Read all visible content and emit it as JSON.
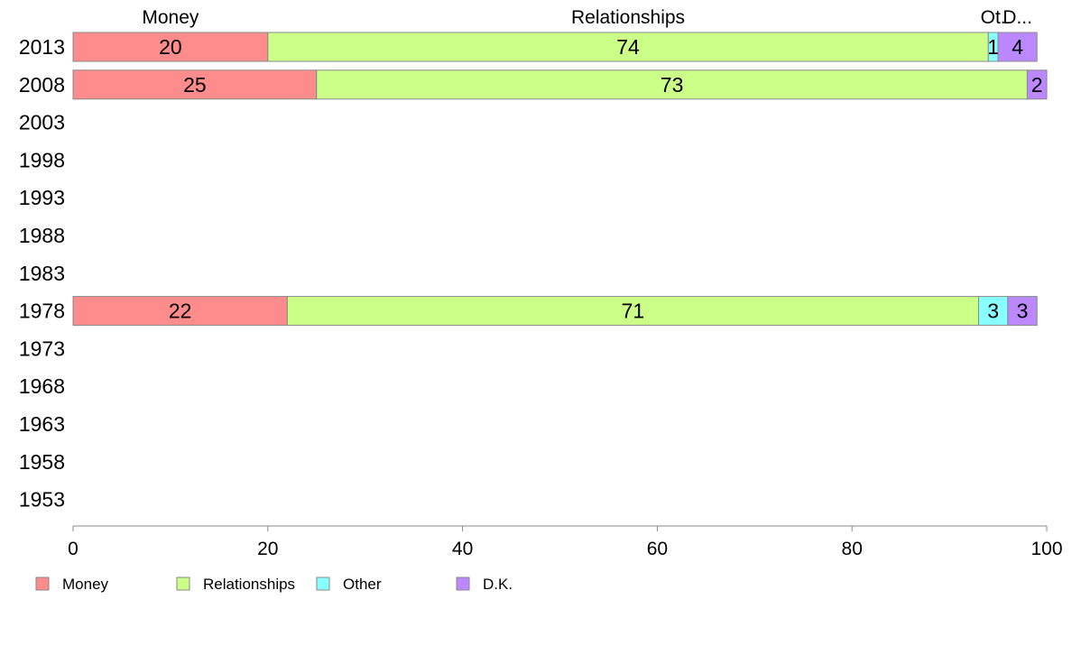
{
  "chart_data": {
    "type": "bar",
    "orientation": "horizontal",
    "stacked": true,
    "categories": [
      "2013",
      "2008",
      "2003",
      "1998",
      "1993",
      "1988",
      "1983",
      "1978",
      "1973",
      "1968",
      "1963",
      "1958",
      "1953"
    ],
    "series": [
      {
        "name": "Money",
        "header": "Money",
        "color": "#ff8c8c",
        "values": [
          20,
          25,
          null,
          null,
          null,
          null,
          null,
          22,
          null,
          null,
          null,
          null,
          null
        ]
      },
      {
        "name": "Relationships",
        "header": "Relationships",
        "color": "#ccff88",
        "values": [
          74,
          73,
          null,
          null,
          null,
          null,
          null,
          71,
          null,
          null,
          null,
          null,
          null
        ]
      },
      {
        "name": "Other",
        "header": "Ot.",
        "color": "#88ffff",
        "values": [
          1,
          0,
          null,
          null,
          null,
          null,
          null,
          3,
          null,
          null,
          null,
          null,
          null
        ]
      },
      {
        "name": "D.K.",
        "header": "D...",
        "color": "#bb88ff",
        "values": [
          4,
          2,
          null,
          null,
          null,
          null,
          null,
          3,
          null,
          null,
          null,
          null,
          null
        ]
      }
    ],
    "xlim": [
      0,
      100
    ],
    "xticks": [
      0,
      20,
      40,
      60,
      80,
      100
    ],
    "legend_position": "bottom-left",
    "grid": false
  }
}
